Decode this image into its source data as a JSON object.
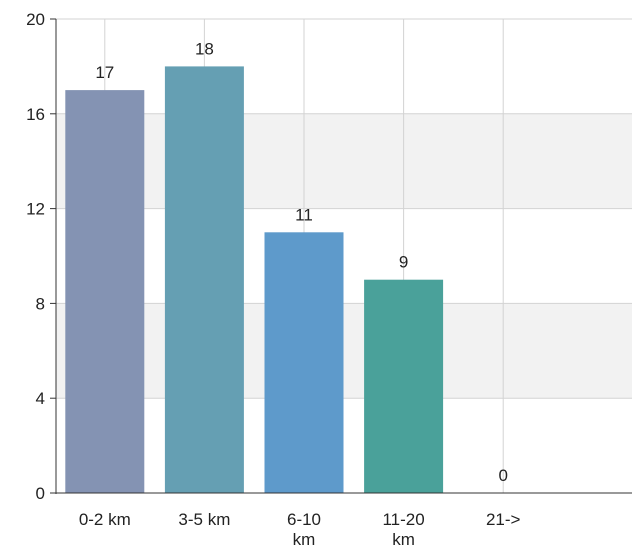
{
  "chart_data": {
    "type": "bar",
    "categories": [
      "0-2 km",
      "3-5 km",
      "6-10 km",
      "11-20 km",
      "21->"
    ],
    "category_label_lines": [
      [
        "0-2 km"
      ],
      [
        "3-5 km"
      ],
      [
        "6-10",
        "km"
      ],
      [
        "11-20",
        "km"
      ],
      [
        "21->"
      ]
    ],
    "values": [
      17,
      18,
      11,
      9,
      0
    ],
    "data_labels": [
      "17",
      "18",
      "11",
      "9",
      "0"
    ],
    "bar_colors": [
      "#8493b3",
      "#659fb3",
      "#5e9acb",
      "#4aa19a",
      "#9fb0c5"
    ],
    "ylim": [
      0,
      20
    ],
    "yticks": [
      0,
      4,
      8,
      12,
      16,
      20
    ],
    "ytick_labels": [
      "0",
      "4",
      "8",
      "12",
      "16",
      "20"
    ],
    "title": "",
    "xlabel": "",
    "ylabel": "",
    "grid": true,
    "band_color": "#f2f2f2",
    "grid_color": "#d3d3d3",
    "axis_color": "#333333",
    "legend": "none"
  }
}
